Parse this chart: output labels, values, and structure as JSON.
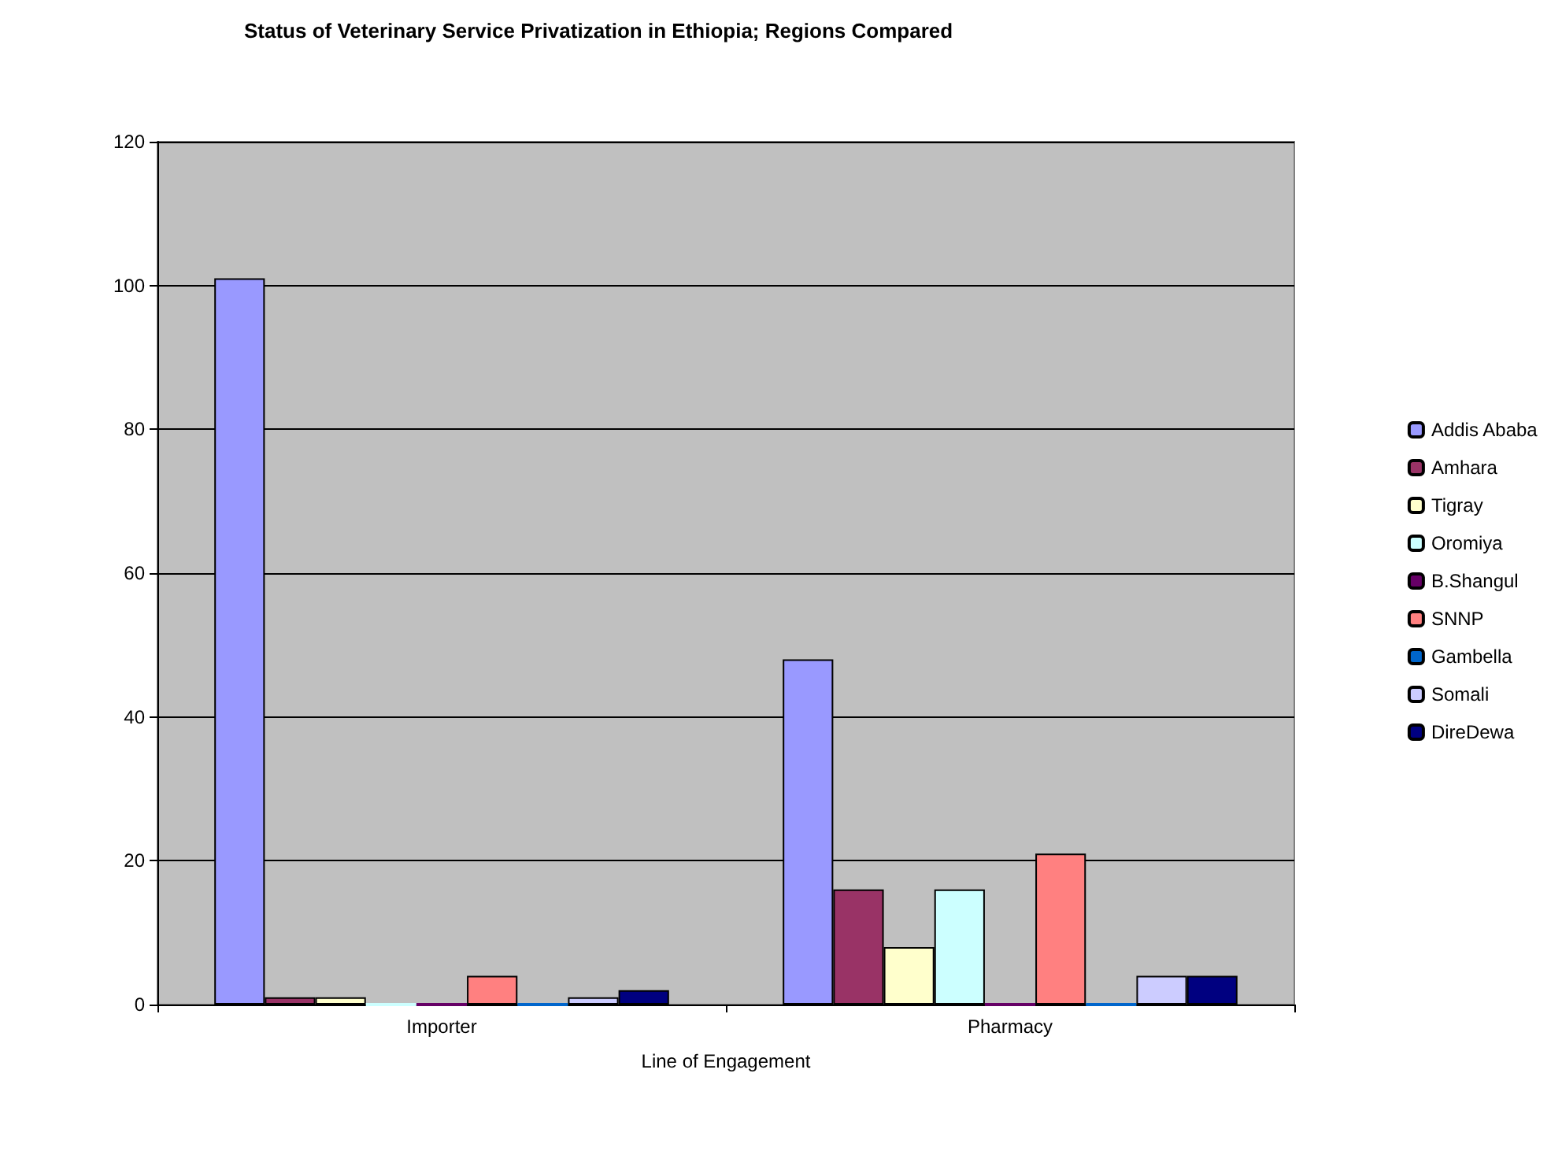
{
  "chart_data": {
    "type": "bar",
    "title": "Status of Veterinary Service Privatization in Ethiopia; Regions Compared",
    "xlabel": "Line of Engagement",
    "categories": [
      "Importer",
      "Pharmacy"
    ],
    "series": [
      {
        "name": "Addis Ababa",
        "color": "#9999ff",
        "values": [
          101,
          48
        ]
      },
      {
        "name": "Amhara",
        "color": "#993366",
        "values": [
          1,
          16
        ]
      },
      {
        "name": "Tigray",
        "color": "#ffffcc",
        "values": [
          1,
          8
        ]
      },
      {
        "name": "Oromiya",
        "color": "#ccffff",
        "values": [
          0,
          16
        ]
      },
      {
        "name": "B.Shangul",
        "color": "#660066",
        "values": [
          0,
          0
        ]
      },
      {
        "name": "SNNP",
        "color": "#ff8080",
        "values": [
          4,
          21
        ]
      },
      {
        "name": "Gambella",
        "color": "#0066cc",
        "values": [
          0,
          0
        ]
      },
      {
        "name": "Somali",
        "color": "#ccccff",
        "values": [
          1,
          4
        ]
      },
      {
        "name": "DireDewa",
        "color": "#000080",
        "values": [
          2,
          4
        ]
      }
    ],
    "ylim": [
      0,
      120
    ],
    "yticks": [
      0,
      20,
      40,
      60,
      80,
      100,
      120
    ],
    "grid": "y",
    "legend": "right"
  }
}
